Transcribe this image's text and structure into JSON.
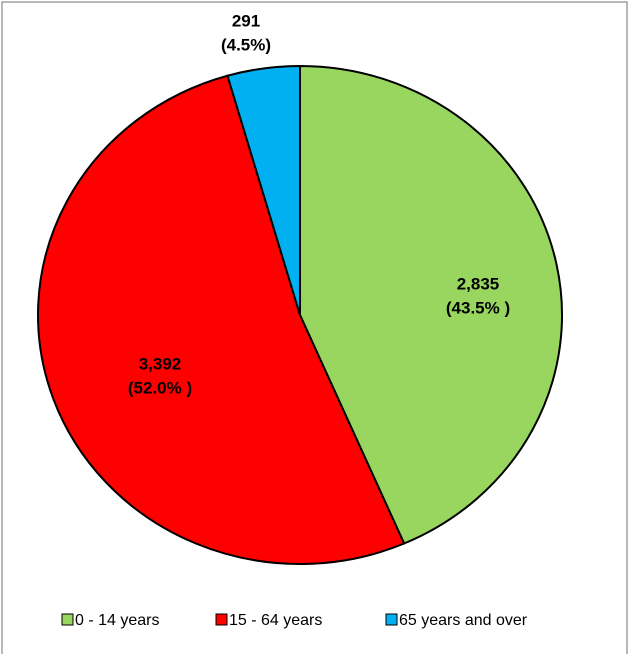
{
  "chart_data": {
    "type": "pie",
    "categories": [
      "0 - 14 years",
      "15 - 64 years",
      "65 years and over"
    ],
    "values": [
      2835,
      3392,
      291
    ],
    "value_labels": [
      "2,835",
      "3,392",
      "291"
    ],
    "percent_labels": [
      "(43.5% )",
      "(52.0% )",
      "(4.5%)"
    ],
    "colors": [
      "#99d660",
      "#ff0000",
      "#00b0f0"
    ],
    "legend": "bottom"
  }
}
